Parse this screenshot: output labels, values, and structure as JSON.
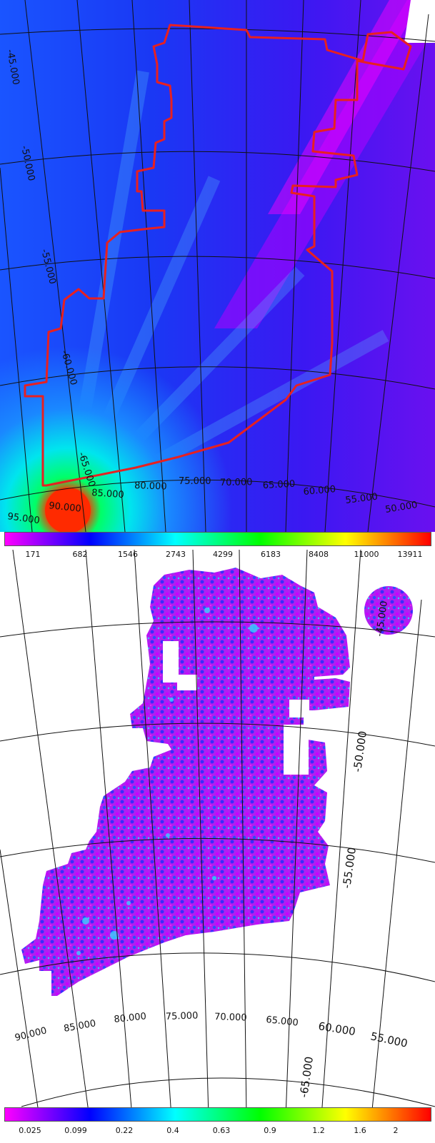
{
  "panels": [
    {
      "ra_labels": [
        "95.000",
        "90.000",
        "85.000",
        "80.000",
        "75.000",
        "70.000",
        "65.000",
        "60.000",
        "55.000",
        "50.000"
      ],
      "dec_labels": [
        "-45.000",
        "-50.000",
        "-55.000",
        "-60.000",
        "-65.000"
      ],
      "colorbar": {
        "ticks": [
          "171",
          "682",
          "1546",
          "2743",
          "4299",
          "6183",
          "8408",
          "11000",
          "13911"
        ],
        "colors": [
          "#ff00ff",
          "#0000ff",
          "#00ffff",
          "#00ff00",
          "#ffff00",
          "#ff0000"
        ]
      },
      "footprint_color": "#e82020"
    },
    {
      "ra_labels": [
        "90.000",
        "85.000",
        "80.000",
        "75.000",
        "70.000",
        "65.000",
        "60.000",
        "55.000"
      ],
      "dec_labels": [
        "-45.000",
        "-50.000",
        "-55.000",
        "-65.000"
      ],
      "colorbar": {
        "ticks": [
          "0.025",
          "0.099",
          "0.22",
          "0.4",
          "0.63",
          "0.9",
          "1.2",
          "1.6",
          "2"
        ],
        "colors": [
          "#ff00ff",
          "#0000ff",
          "#00ffff",
          "#00ff00",
          "#ffff00",
          "#ff0000"
        ]
      }
    }
  ]
}
